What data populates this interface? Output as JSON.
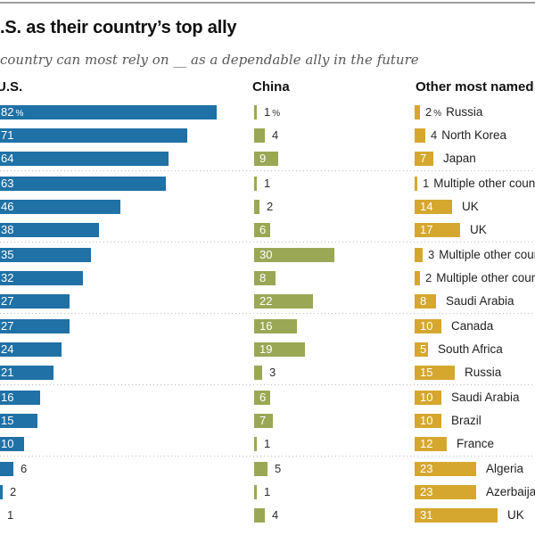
{
  "page": {
    "title": ".S. as their country’s top ally",
    "subtitle": "country can most rely on __ as a dependable ally in the future"
  },
  "columns": {
    "us_label": "U.S.",
    "china_label": "China",
    "other_label": "Other most named countries"
  },
  "colors": {
    "us_bar": "#1f71a6",
    "china_bar": "#9aa855",
    "other_bar": "#d5a72e",
    "top_rule": "#9e9e9e",
    "subtitle_text": "#58585a",
    "inside_label": "#ffffff",
    "outside_label": "#2d2d2d",
    "divider": "#bdbdbd"
  },
  "chart_data": {
    "type": "bar",
    "unit": "%",
    "group_size": 3,
    "first_row_shows_percent": true,
    "series": [
      {
        "name": "U.S.",
        "values": [
          82,
          71,
          64,
          63,
          46,
          38,
          35,
          32,
          27,
          27,
          24,
          21,
          16,
          15,
          10,
          6,
          2,
          1
        ]
      },
      {
        "name": "China",
        "values": [
          1,
          4,
          9,
          1,
          2,
          6,
          30,
          8,
          22,
          16,
          19,
          3,
          6,
          7,
          1,
          5,
          1,
          4
        ]
      },
      {
        "name": "Other most named countries",
        "values": [
          2,
          4,
          7,
          1,
          14,
          17,
          3,
          2,
          8,
          10,
          5,
          15,
          10,
          10,
          12,
          23,
          23,
          31
        ],
        "labels": [
          "Russia",
          "North Korea",
          "Japan",
          "Multiple other countries",
          "UK",
          "UK",
          "Multiple other countries",
          "Multiple other countries",
          "Saudi Arabia",
          "Canada",
          "South Africa",
          "Russia",
          "Saudi Arabia",
          "Brazil",
          "France",
          "Algeria",
          "Azerbaijan",
          "UK"
        ]
      }
    ]
  }
}
